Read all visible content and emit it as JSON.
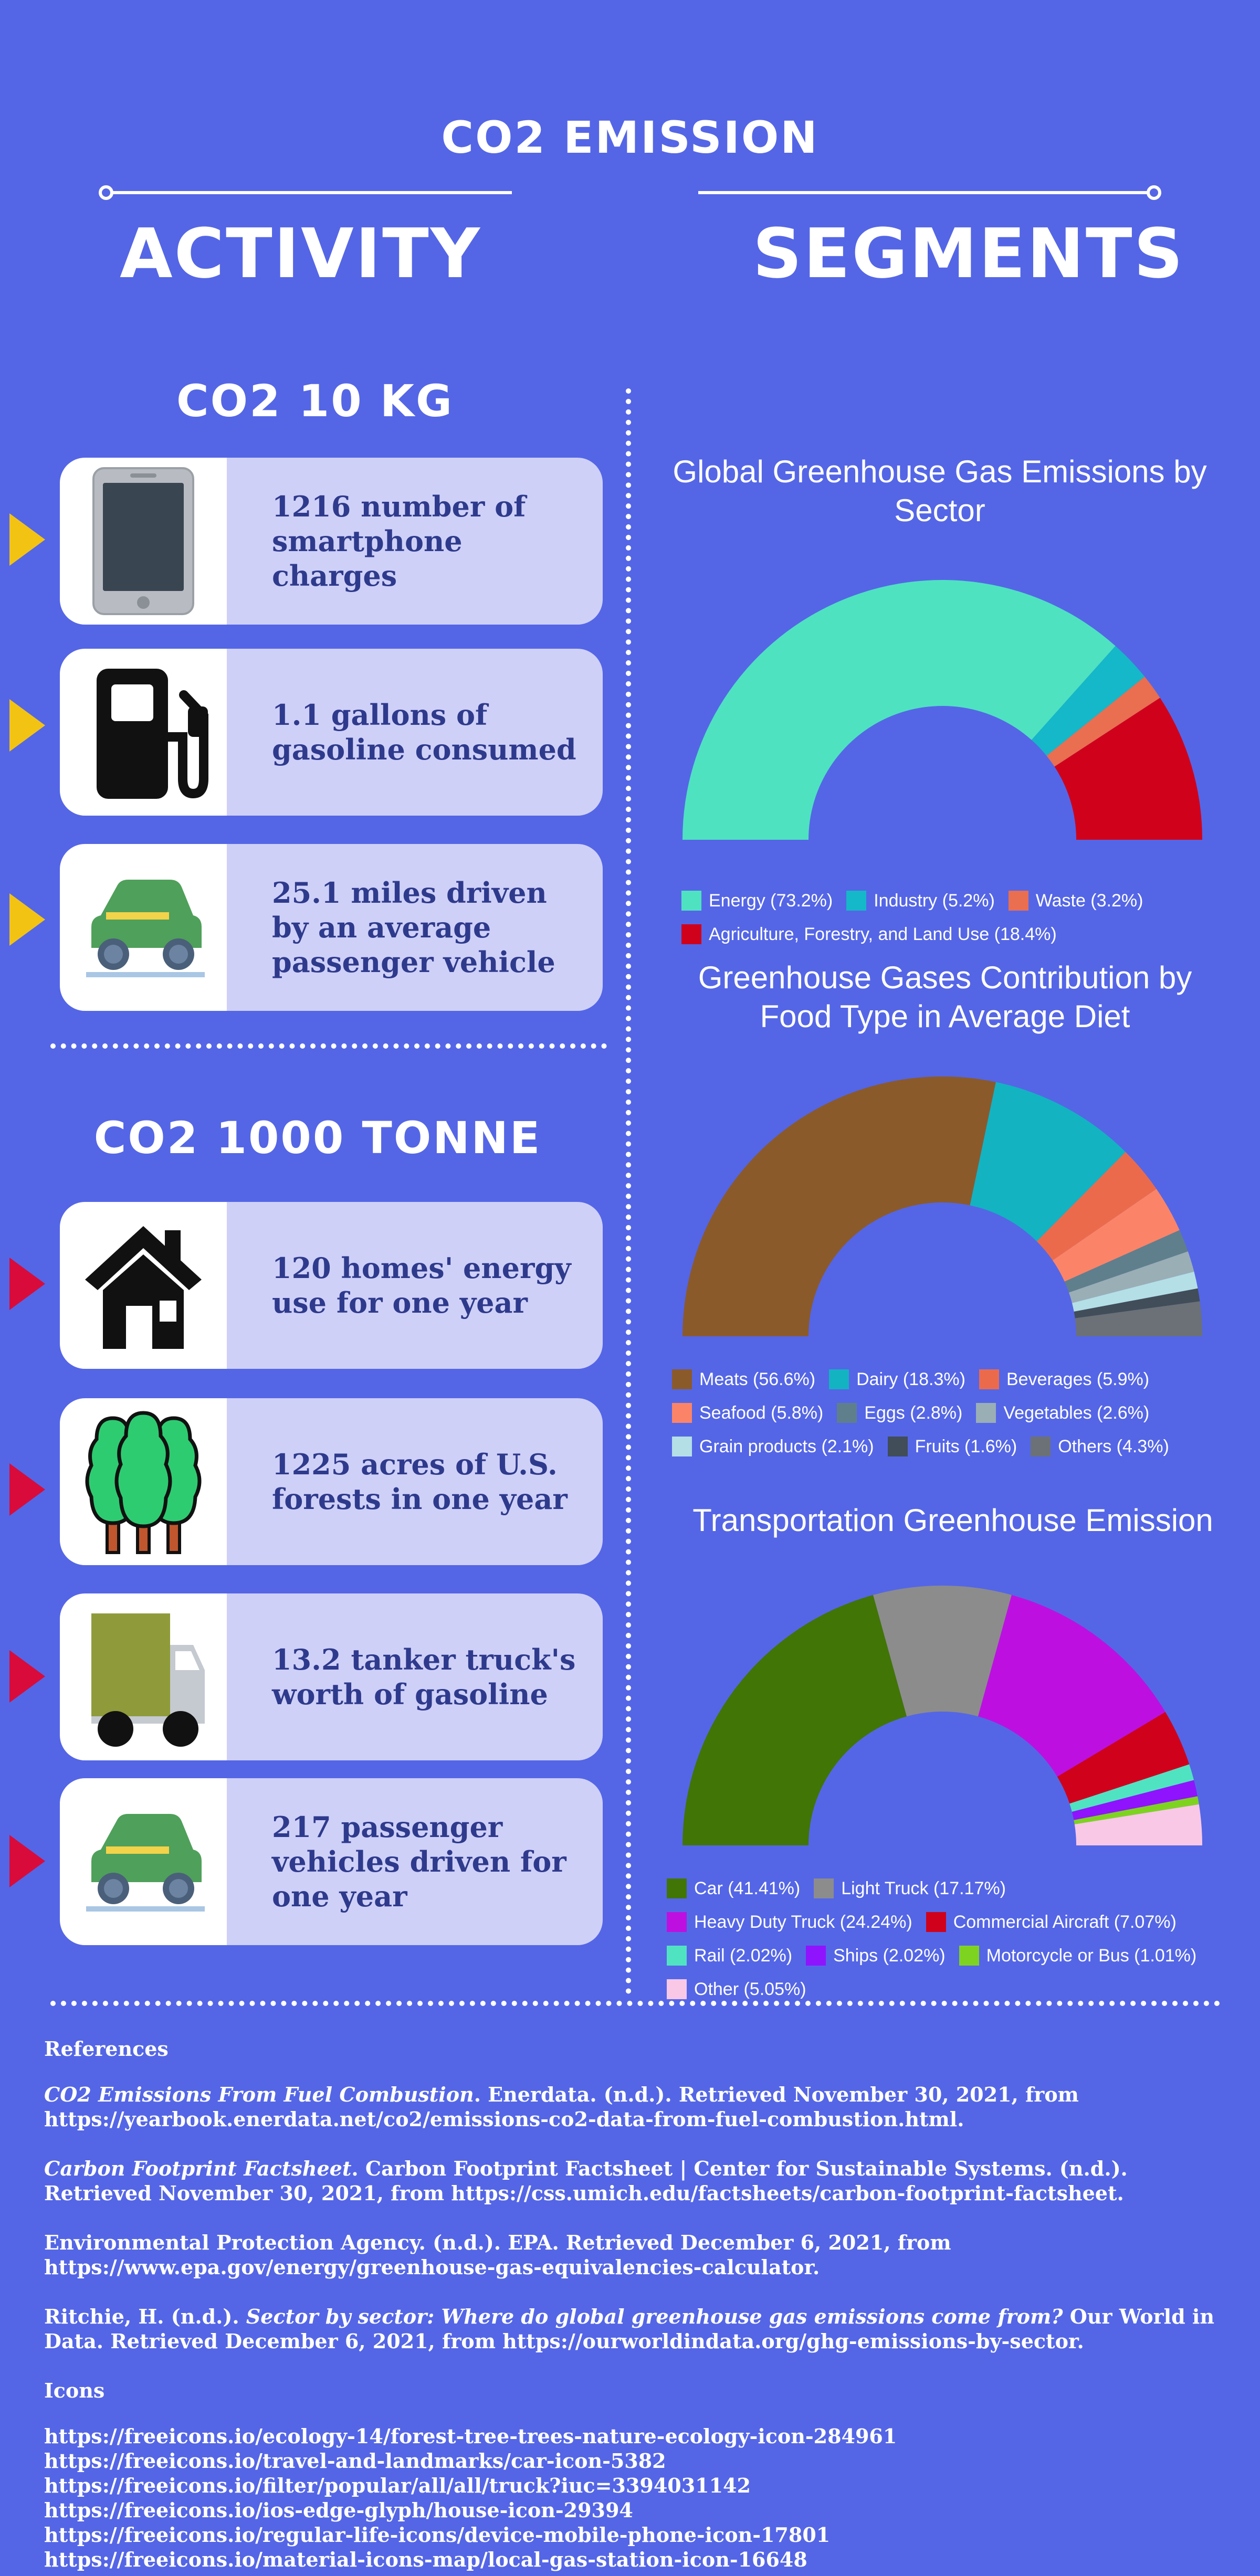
{
  "header": {
    "title": "CO2 EMISSION",
    "left": "ACTIVITY",
    "right": "SEGMENTS"
  },
  "section_10kg": {
    "title": "CO2 10 KG",
    "items": [
      {
        "icon": "smartphone-icon",
        "text": "1216 number of smartphone charges"
      },
      {
        "icon": "gas-station-icon",
        "text": "1.1 gallons of gasoline consumed"
      },
      {
        "icon": "car-icon",
        "text": "25.1 miles driven by an average passenger vehicle"
      }
    ]
  },
  "section_1000t": {
    "title": "CO2 1000 TONNE",
    "items": [
      {
        "icon": "house-icon",
        "text": "120 homes' energy use for one year"
      },
      {
        "icon": "forest-icon",
        "text": "1225 acres of U.S. forests in one year"
      },
      {
        "icon": "truck-icon",
        "text": "13.2 tanker truck's worth of gasoline"
      },
      {
        "icon": "car-icon",
        "text": "217 passenger vehicles driven for one year"
      }
    ]
  },
  "colors": {
    "background": "#5466e6",
    "card": "#cfd0f8",
    "arrow_10kg": "#f3c313",
    "arrow_1000t": "#d90b3a"
  },
  "chart_data": [
    {
      "type": "pie",
      "style": "half-donut",
      "title": "Global Greenhouse Gas Emissions by Sector",
      "legend_position": "bottom",
      "series": [
        {
          "name": "Energy (73.2%)",
          "value": 73.2,
          "color": "#4ee2c1"
        },
        {
          "name": "Industry (5.2%)",
          "value": 5.2,
          "color": "#14b8c8"
        },
        {
          "name": "Waste (3.2%)",
          "value": 3.2,
          "color": "#ea6e50"
        },
        {
          "name": "Agriculture, Forestry, and Land Use (18.4%)",
          "value": 18.4,
          "color": "#d0021b"
        }
      ]
    },
    {
      "type": "pie",
      "style": "half-donut",
      "title": "Greenhouse Gases Contribution by Food Type in Average Diet",
      "legend_position": "bottom",
      "series": [
        {
          "name": "Meats (56.6%)",
          "value": 56.6,
          "color": "#8b5a2b"
        },
        {
          "name": "Dairy (18.3%)",
          "value": 18.3,
          "color": "#13b3c2"
        },
        {
          "name": "Beverages (5.9%)",
          "value": 5.9,
          "color": "#ec6a4c"
        },
        {
          "name": "Seafood (5.8%)",
          "value": 5.8,
          "color": "#fb8468"
        },
        {
          "name": "Eggs (2.8%)",
          "value": 2.8,
          "color": "#5f7f8c"
        },
        {
          "name": "Vegetables (2.6%)",
          "value": 2.6,
          "color": "#9aaeb6"
        },
        {
          "name": "Grain products (2.1%)",
          "value": 2.1,
          "color": "#b4dfe6"
        },
        {
          "name": "Fruits (1.6%)",
          "value": 1.6,
          "color": "#414d59"
        },
        {
          "name": "Others (4.3%)",
          "value": 4.3,
          "color": "#6b7177"
        }
      ]
    },
    {
      "type": "pie",
      "style": "half-donut",
      "title": "Transportation Greenhouse Emission",
      "legend_position": "bottom",
      "series": [
        {
          "name": "Car (41.41%)",
          "value": 41.41,
          "color": "#417505"
        },
        {
          "name": "Light Truck (17.17%)",
          "value": 17.17,
          "color": "#8c8c8c"
        },
        {
          "name": "Heavy Duty Truck (24.24%)",
          "value": 24.24,
          "color": "#bd10e0"
        },
        {
          "name": "Commercial Aircraft (7.07%)",
          "value": 7.07,
          "color": "#d0021b"
        },
        {
          "name": "Rail (2.02%)",
          "value": 2.02,
          "color": "#50e3c2"
        },
        {
          "name": "Ships (2.02%)",
          "value": 2.02,
          "color": "#9013fe"
        },
        {
          "name": "Motorcycle or Bus (1.01%)",
          "value": 1.01,
          "color": "#7ed321"
        },
        {
          "name": "Other (5.05%)",
          "value": 5.05,
          "color": "#f9c8e6"
        }
      ]
    }
  ],
  "references": {
    "heading": "References",
    "entries": [
      {
        "italic": "CO2 Emissions From Fuel Combustion",
        "rest": ". Enerdata. (n.d.). Retrieved November 30, 2021, from https://yearbook.enerdata.net/co2/emissions-co2-data-from-fuel-combustion.html."
      },
      {
        "italic": "Carbon Footprint Factsheet",
        "rest": ". Carbon Footprint Factsheet | Center for Sustainable Systems. (n.d.). Retrieved November 30, 2021, from https://css.umich.edu/factsheets/carbon-footprint-factsheet."
      },
      {
        "italic": "",
        "rest": "Environmental Protection Agency. (n.d.). EPA. Retrieved December 6, 2021, from https://www.epa.gov/energy/greenhouse-gas-equivalencies-calculator."
      }
    ],
    "ritchie": {
      "pre": "Ritchie, H. (n.d.). ",
      "italic": "Sector by sector: Where do global greenhouse gas emissions come from?",
      "rest": " Our World in Data. Retrieved December 6, 2021, from https://ourworldindata.org/ghg-emissions-by-sector."
    },
    "icons_heading": "Icons",
    "icon_links": [
      "https://freeicons.io/ecology-14/forest-tree-trees-nature-ecology-icon-284961",
      "https://freeicons.io/travel-and-landmarks/car-icon-5382",
      "https://freeicons.io/filter/popular/all/all/truck?iuc=3394031142",
      "https://freeicons.io/ios-edge-glyph/house-icon-29394",
      "https://freeicons.io/regular-life-icons/device-mobile-phone-icon-17801",
      "https://freeicons.io/material-icons-map/local-gas-station-icon-16648"
    ]
  }
}
